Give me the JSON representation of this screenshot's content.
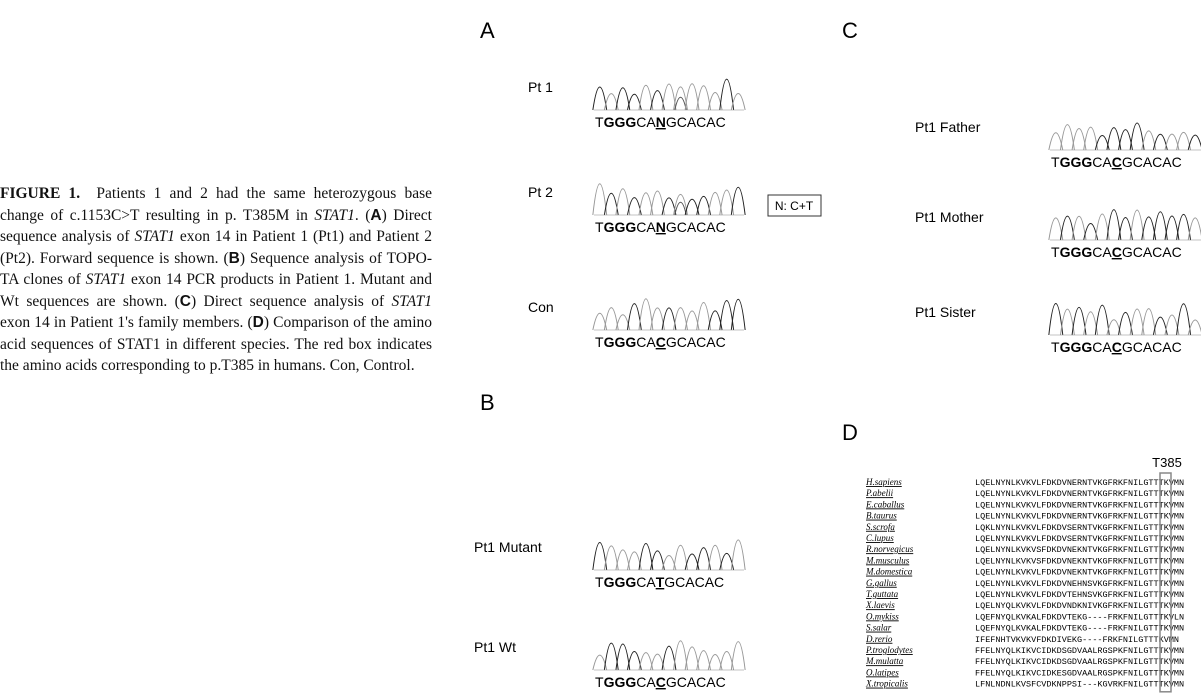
{
  "caption": {
    "segments": [
      "FIGURE 1.",
      "Patients 1 and 2 had the same heterozygous base change of c.1153C>T resulting in p. T385M in ",
      "STAT1",
      ". (",
      "A",
      ") Direct sequence analysis of ",
      "STAT1",
      " exon 14 in Patient 1 (Pt1) and Patient 2 (Pt2). Forward sequence is shown. (",
      "B",
      ") Sequence analysis of TOPO-TA clones of ",
      "STAT1",
      " exon 14 PCR products in Patient 1. Mutant and Wt sequences are shown. (",
      "C",
      ") Direct sequence analysis of ",
      "STAT1",
      " exon 14 in Patient 1's family members. (",
      "D",
      ") Comparison of the amino acid sequences of STAT1 in different species. The red box indicates the amino acids corresponding to p.T385 in humans. Con, Control."
    ]
  },
  "panels": {
    "A": {
      "label": "A",
      "traces": [
        {
          "name": "Pt 1",
          "sequence": [
            "T",
            "GGG",
            "CA",
            "N",
            "GCACAC"
          ]
        },
        {
          "name": "Pt 2",
          "sequence": [
            "T",
            "GGG",
            "CA",
            "N",
            "GCACAC"
          ]
        },
        {
          "name": "Con",
          "sequence": [
            "T",
            "GGG",
            "CA",
            "C",
            "GCACAC"
          ]
        }
      ],
      "note": "N: C+T"
    },
    "B": {
      "label": "B",
      "traces": [
        {
          "name": "Pt1 Mutant",
          "sequence": [
            "T",
            "GGG",
            "CA",
            "T",
            "GCACAC"
          ]
        },
        {
          "name": "Pt1 Wt",
          "sequence": [
            "T",
            "GGG",
            "CA",
            "C",
            "GCACAC"
          ]
        }
      ]
    },
    "C": {
      "label": "C",
      "traces": [
        {
          "name": "Pt1 Father",
          "sequence": [
            "T",
            "GGG",
            "CA",
            "C",
            "GCACAC"
          ]
        },
        {
          "name": "Pt1 Mother",
          "sequence": [
            "T",
            "GGG",
            "CA",
            "C",
            "GCACAC"
          ]
        },
        {
          "name": "Pt1 Sister",
          "sequence": [
            "T",
            "GGG",
            "CA",
            "C",
            "GCACAC"
          ]
        }
      ]
    },
    "D": {
      "label": "D",
      "marker": "T385",
      "species": [
        {
          "name": "H.sapiens",
          "sequence": "LQELNYNLKVKVLFDKDVNERNTVKGFRKFNILGTTTKVMN"
        },
        {
          "name": "P.abelii",
          "sequence": "LQELNYNLKVKVLFDKDVNERNTVKGFRKFNILGTTTKVMN"
        },
        {
          "name": "E.caballus",
          "sequence": "LQELNYNLKVKVLFDKDVNERNTVKGFRKFNILGTTTKVMN"
        },
        {
          "name": "B.taurus",
          "sequence": "LQELNYNLKVKVLFDKDVNERNTVKGFRKFNILGTTTKVMN"
        },
        {
          "name": "S.scrofa",
          "sequence": "LQKLNYNLKVKVLFDKDVSERNTVKGFRKFNILGTTTKVMN"
        },
        {
          "name": "C.lupus",
          "sequence": "LQELNYNLKVKVLFDKDVSERNTVKGFRKFNILGTTTKVMN"
        },
        {
          "name": "R.norvegicus",
          "sequence": "LQELNYNLKVKVSFDKDVNEKNTVKGFRKFNILGTTTKVMN"
        },
        {
          "name": "M.musculus",
          "sequence": "LQELNYNLKVKVSFDKDVNEKNTVKGFRKFNILGTTTKVMN"
        },
        {
          "name": "M.domestica",
          "sequence": "LQELNYNLKVKVLFDKDVNEKNTVKGFRKFNILGTTTKVMN"
        },
        {
          "name": "G.gallus",
          "sequence": "LQELNYNLKVKVLFDKDVNEHNSVKGFRKFNILGTTTKVMN"
        },
        {
          "name": "T.guttata",
          "sequence": "LQELNYNLKVKVLFDKDVTEHNSVKGFRKFNILGTTTKVMN"
        },
        {
          "name": "X.laevis",
          "sequence": "LQELNYQLKVKVLFDKDVNDKNIVKGFRKFNILGTTTKVMN"
        },
        {
          "name": "O.mykiss",
          "sequence": "LQEFNYQLKVKALFDKDVTEKG----FRKFNILGTTTKVLN"
        },
        {
          "name": "S.salar",
          "sequence": "LQEFNYQLKVKALFDKDVTEKG----FRKFNILGTTTKVMN"
        },
        {
          "name": "D.rerio",
          "sequence": "IFEFNHTVKVKVFDKDIVEKG----FRKFNILGTTTKVMN"
        },
        {
          "name": "P.troglodytes",
          "sequence": "FFELNYQLKIKVCIDKDSGDVAALRGSPKFNILGTTTKVMN"
        },
        {
          "name": "M.mulatta",
          "sequence": "FFELNYQLKIKVCIDKDSGDVAALRGSPKFNILGTTTKVMN"
        },
        {
          "name": "O.latipes",
          "sequence": "FFELNYQLKIKVCIDKESGDVAALRGSPKFNILGTTTKVMN"
        },
        {
          "name": "X.tropicalis",
          "sequence": "LFNLNDNLKVSFCVDKNPPSI---KGVRKFNILGTTTKVMN"
        }
      ]
    }
  }
}
